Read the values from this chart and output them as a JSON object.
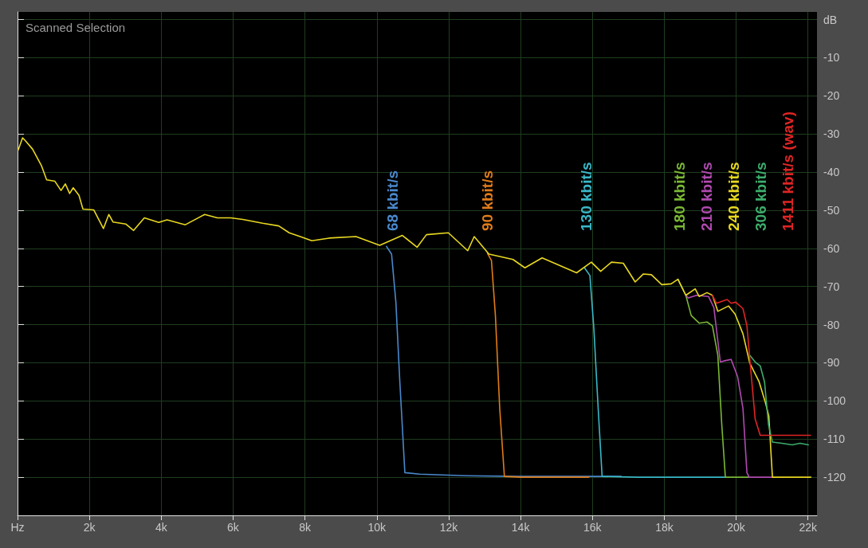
{
  "chart_data": {
    "type": "line",
    "title": "Scanned Selection",
    "xlim": [
      0,
      22250
    ],
    "ylim": [
      -130,
      2
    ],
    "xticks": [
      {
        "value": 0,
        "label": "Hz"
      },
      {
        "value": 2000,
        "label": "2k"
      },
      {
        "value": 4000,
        "label": "4k"
      },
      {
        "value": 6000,
        "label": "6k"
      },
      {
        "value": 8000,
        "label": "8k"
      },
      {
        "value": 10000,
        "label": "10k"
      },
      {
        "value": 12000,
        "label": "12k"
      },
      {
        "value": 14000,
        "label": "14k"
      },
      {
        "value": 16000,
        "label": "16k"
      },
      {
        "value": 18000,
        "label": "18k"
      },
      {
        "value": 20000,
        "label": "20k"
      },
      {
        "value": 22000,
        "label": "22k"
      }
    ],
    "yticks": [
      {
        "value": 0,
        "label": "dB"
      },
      -10,
      -20,
      -30,
      -40,
      -50,
      -60,
      -70,
      -80,
      -90,
      -100,
      -110,
      -120
    ],
    "grid": true,
    "legend": false,
    "marker": "none",
    "line_style": "solid",
    "series": [
      {
        "name": "68 kbit/s",
        "color": "#4a88cc",
        "x": [
          10270,
          10410,
          10530,
          10640,
          10780,
          11190,
          12450,
          13930,
          16800
        ],
        "values": [
          -59.5,
          -61.5,
          -74.1,
          -95.0,
          -118.8,
          -119.2,
          -119.6,
          -119.8,
          -119.8
        ]
      },
      {
        "name": "90 kbit/s",
        "color": "#e07b1a",
        "x": [
          13080,
          13190,
          13300,
          13420,
          13550,
          14010,
          15900
        ],
        "values": [
          -61.3,
          -63.2,
          -77.6,
          -102.0,
          -119.8,
          -120,
          -120
        ]
      },
      {
        "name": "130 kbit/s",
        "color": "#3ab8c8",
        "x": [
          15780,
          15930,
          16040,
          16160,
          16270,
          17270,
          19700
        ],
        "values": [
          -65.1,
          -67.1,
          -81.0,
          -102.0,
          -119.8,
          -120,
          -120
        ]
      },
      {
        "name": "180 kbit/s",
        "color": "#7ab834",
        "x": [
          18380,
          18600,
          18750,
          18970,
          19190,
          19340,
          19490,
          19600,
          19700,
          20360
        ],
        "values": [
          -68.1,
          -72.3,
          -77.6,
          -79.6,
          -79.3,
          -80.3,
          -88.0,
          -106.2,
          -120,
          -120
        ]
      },
      {
        "name": "210 kbit/s",
        "color": "#b04ab0",
        "x": [
          18600,
          18670,
          18900,
          19230,
          19380,
          19560,
          19710,
          19860,
          20040,
          20190,
          20300,
          20360,
          21010
        ],
        "values": [
          -72.3,
          -73.0,
          -72.3,
          -72.6,
          -75.5,
          -89.8,
          -89.4,
          -89.1,
          -93.6,
          -102.0,
          -118.8,
          -120,
          -120
        ]
      },
      {
        "name": "240 kbit/s",
        "color": "#e8d820",
        "x": [
          20,
          140,
          230,
          420,
          670,
          810,
          1040,
          1210,
          1330,
          1450,
          1550,
          1710,
          1820,
          2120,
          2390,
          2540,
          2660,
          3010,
          3230,
          3530,
          3930,
          4160,
          4670,
          5210,
          5560,
          5930,
          6270,
          6820,
          7270,
          7560,
          7930,
          8190,
          8670,
          9420,
          10080,
          10710,
          11120,
          11380,
          11990,
          12530,
          12710,
          13120,
          13790,
          14120,
          14600,
          15560,
          15970,
          16230,
          16530,
          16860,
          17190,
          17420,
          17640,
          17930,
          18190,
          18380,
          18600,
          18860,
          18970,
          19190,
          19340,
          19490,
          19790,
          19970,
          20190,
          20380,
          20640,
          20820,
          20910,
          21010,
          22080
        ],
        "values": [
          -34.2,
          -31.0,
          -31.9,
          -34.0,
          -38.4,
          -42.0,
          -42.4,
          -44.8,
          -43.1,
          -45.6,
          -44.1,
          -46.1,
          -49.7,
          -49.9,
          -54.8,
          -51.1,
          -53.1,
          -53.6,
          -55.3,
          -52.0,
          -53.2,
          -52.5,
          -53.8,
          -51.1,
          -52.0,
          -52.0,
          -52.4,
          -53.4,
          -54.1,
          -55.9,
          -57.1,
          -58.0,
          -57.3,
          -56.9,
          -59.2,
          -56.6,
          -59.7,
          -56.4,
          -55.9,
          -60.6,
          -56.9,
          -61.5,
          -62.9,
          -65.1,
          -62.5,
          -66.4,
          -63.6,
          -66.0,
          -63.6,
          -63.9,
          -68.8,
          -66.7,
          -66.9,
          -69.5,
          -69.3,
          -68.1,
          -72.3,
          -70.6,
          -72.6,
          -71.6,
          -72.3,
          -76.5,
          -75.1,
          -77.2,
          -82.4,
          -90.1,
          -95.0,
          -100.6,
          -104.0,
          -120,
          -120
        ]
      },
      {
        "name": "306 kbit/s",
        "color": "#3cad6c",
        "x": [
          20380,
          20530,
          20670,
          20790,
          20900,
          21010,
          21270,
          21560,
          21780,
          22010
        ],
        "values": [
          -88.0,
          -89.8,
          -90.8,
          -95.0,
          -106.2,
          -110.8,
          -111.1,
          -111.5,
          -111.1,
          -111.5
        ]
      },
      {
        "name": "1411 kbit/s (wav)",
        "color": "#e02424",
        "x": [
          19340,
          19450,
          19750,
          19860,
          19990,
          20190,
          20300,
          20410,
          20530,
          20670,
          22070
        ],
        "values": [
          -72.3,
          -74.4,
          -73.4,
          -74.4,
          -74.1,
          -75.8,
          -80.3,
          -92.2,
          -104.8,
          -109.0,
          -109.0
        ]
      }
    ]
  }
}
